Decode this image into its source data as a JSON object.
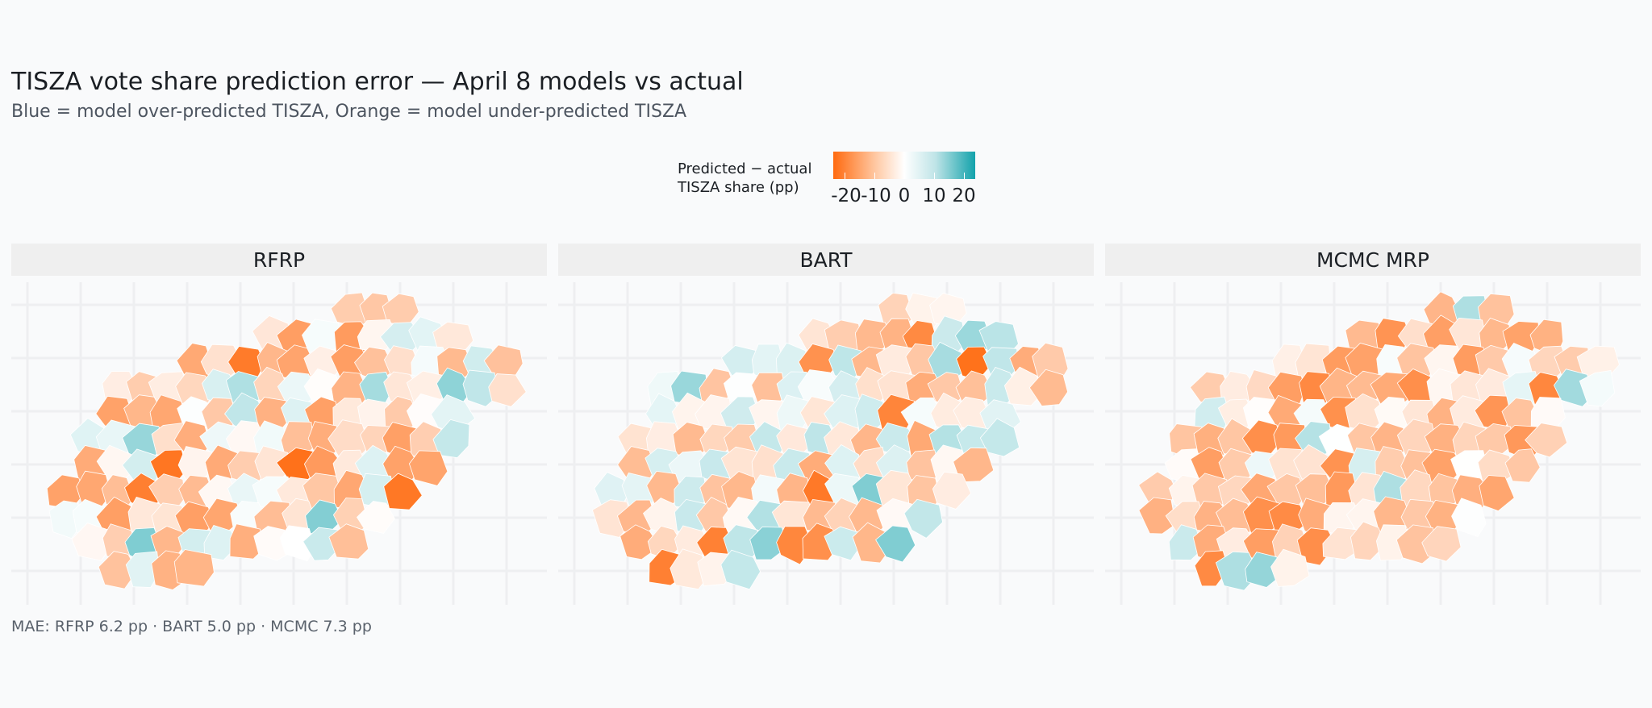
{
  "title": "TISZA vote share prediction error — April 8 models vs actual",
  "subtitle": "Blue = model over-predicted TISZA, Orange = model under-predicted TISZA",
  "legend": {
    "title_line1": "Predicted − actual",
    "title_line2": "TISZA share (pp)",
    "ticks": [
      "-20",
      "-10",
      "0",
      "10",
      "20"
    ],
    "range": [
      -25,
      25
    ],
    "colors": {
      "negative": "#ff6a0f",
      "zero": "#ffffff",
      "positive": "#12a2ab"
    }
  },
  "panels": [
    {
      "name": "RFRP"
    },
    {
      "name": "BART"
    },
    {
      "name": "MCMC MRP"
    }
  ],
  "caption": "MAE: RFRP 6.2 pp · BART 5.0 pp · MCMC 7.3 pp",
  "chart_data": {
    "type": "choropleth",
    "region": "Hungary electoral districts",
    "units": "pp",
    "value_label": "Predicted − actual TISZA share (pp)",
    "scale": {
      "min": -25,
      "max": 25,
      "midpoint": 0,
      "low_color": "#ff6a0f",
      "mid_color": "#ffffff",
      "high_color": "#12a2ab"
    },
    "series": [
      {
        "name": "RFRP",
        "mae_pp": 6.2
      },
      {
        "name": "BART",
        "mae_pp": 5.0
      },
      {
        "name": "MCMC MRP",
        "mae_pp": 7.3
      }
    ]
  }
}
